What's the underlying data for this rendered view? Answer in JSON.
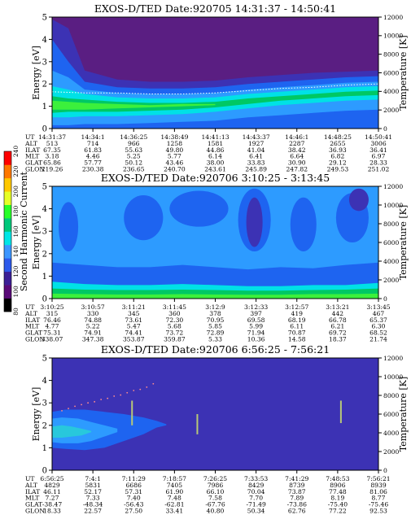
{
  "colorbar": {
    "label": "Second Harmonic Current",
    "ticks": [
      "80",
      "100",
      "120",
      "140",
      "160",
      "180",
      "200",
      "220",
      "240"
    ],
    "min": 80,
    "max": 240,
    "colors": [
      "#000000",
      "#5a0a78",
      "#3c1f96",
      "#2d5aeb",
      "#3c96ff",
      "#00e6e6",
      "#00c87a",
      "#28ff28",
      "#e6ff28",
      "#ffc800",
      "#ff7800",
      "#ff0000"
    ]
  },
  "chart_data": [
    {
      "type": "heatmap",
      "title": "EXOS-D/TED   Date:920705   14:31:37 - 14:50:41",
      "ylabel": "Energy [eV]",
      "y2label": "Temperature [K]",
      "ylim": [
        0,
        5
      ],
      "yticks": [
        "0",
        "1",
        "2",
        "3",
        "4",
        "5"
      ],
      "y2lim": [
        0,
        12000
      ],
      "y2ticks": [
        "0",
        "2000",
        "4000",
        "6000",
        "8000",
        "10000",
        "12000"
      ],
      "background": "#5a1e82",
      "bands": [
        {
          "name": "dark-blue",
          "color": "#3c32b4",
          "x": [
            0,
            0.05,
            0.1,
            0.2,
            0.3,
            0.4,
            0.5,
            0.6,
            0.7,
            0.8,
            0.9,
            1.0
          ],
          "lo": [
            0,
            0,
            0,
            0,
            0,
            0,
            0,
            0,
            0,
            0,
            0,
            0
          ],
          "hi": [
            4.9,
            4.5,
            2.6,
            2.2,
            2.1,
            2.1,
            2.15,
            2.3,
            2.4,
            2.5,
            2.55,
            2.6
          ]
        },
        {
          "name": "medium-blue",
          "color": "#1e64f0",
          "x": [
            0,
            0.05,
            0.1,
            0.2,
            0.3,
            0.4,
            0.5,
            0.6,
            0.7,
            0.8,
            0.9,
            1.0
          ],
          "lo": [
            0,
            0,
            0,
            0,
            0,
            0,
            0,
            0,
            0,
            0,
            0,
            0
          ],
          "hi": [
            4.0,
            3.0,
            2.1,
            1.85,
            1.8,
            1.8,
            1.85,
            2.0,
            2.1,
            2.2,
            2.3,
            2.35
          ]
        },
        {
          "name": "light-blue",
          "color": "#2d9bff",
          "x": [
            0,
            0.05,
            0.1,
            0.2,
            0.3,
            0.4,
            0.5,
            0.6,
            0.7,
            0.8,
            0.9,
            1.0
          ],
          "lo": [
            0.15,
            0.15,
            0.2,
            0.2,
            0.25,
            0.3,
            0.35,
            0.5,
            0.6,
            0.7,
            0.8,
            0.85
          ],
          "hi": [
            2.6,
            2.3,
            1.75,
            1.6,
            1.55,
            1.55,
            1.6,
            1.75,
            1.85,
            1.95,
            2.05,
            2.1
          ]
        },
        {
          "name": "cyan",
          "color": "#00e1e6",
          "x": [
            0,
            0.05,
            0.1,
            0.2,
            0.3,
            0.4,
            0.5,
            0.6,
            0.7,
            0.8,
            0.9,
            1.0
          ],
          "lo": [
            0.5,
            0.5,
            0.55,
            0.55,
            0.6,
            0.65,
            0.75,
            0.9,
            1.05,
            1.15,
            1.25,
            1.3
          ],
          "hi": [
            1.9,
            1.75,
            1.55,
            1.4,
            1.35,
            1.35,
            1.4,
            1.55,
            1.65,
            1.75,
            1.85,
            1.9
          ]
        },
        {
          "name": "green",
          "color": "#00c864",
          "x": [
            0,
            0.05,
            0.1,
            0.2,
            0.3,
            0.4,
            0.5,
            0.6,
            0.7,
            0.8,
            0.9,
            1.0
          ],
          "lo": [
            0.7,
            0.75,
            0.75,
            0.75,
            0.8,
            0.85,
            0.95,
            1.1,
            1.25,
            1.35,
            1.45,
            1.5
          ],
          "hi": [
            1.45,
            1.35,
            1.3,
            1.2,
            1.15,
            1.15,
            1.2,
            1.35,
            1.45,
            1.55,
            1.65,
            1.7
          ]
        },
        {
          "name": "bright-green",
          "color": "#3cf03c",
          "x": [
            0,
            0.05,
            0.1,
            0.2,
            0.3,
            0.4,
            0.5
          ],
          "lo": [
            0.85,
            0.85,
            0.85,
            0.9,
            0.95,
            1.0,
            1.05
          ],
          "hi": [
            1.25,
            1.2,
            1.15,
            1.1,
            1.05,
            1.1,
            1.1
          ]
        }
      ],
      "dashed_line": {
        "x": [
          0,
          0.1,
          0.2,
          0.3,
          0.4,
          0.5,
          0.6,
          0.7,
          0.8,
          0.9,
          1.0
        ],
        "y": [
          1.65,
          1.6,
          1.6,
          1.55,
          1.55,
          1.6,
          1.7,
          1.8,
          1.85,
          1.95,
          2.0
        ]
      },
      "table": {
        "labels": [
          "UT",
          "ALT",
          "ILAT",
          "MLT",
          "GLAT",
          "GLON"
        ],
        "columns": [
          [
            "14:31:37",
            "513",
            "67.35",
            "3.18",
            "65.86",
            "219.26"
          ],
          [
            "14:34:1",
            "714",
            "61.83",
            "4.46",
            "57.77",
            "230.38"
          ],
          [
            "14:36:25",
            "966",
            "55.63",
            "5.25",
            "50.12",
            "236.65"
          ],
          [
            "14:38:49",
            "1258",
            "49.80",
            "5.77",
            "43.46",
            "240.70"
          ],
          [
            "14:41:13",
            "1581",
            "44.86",
            "6.14",
            "38.00",
            "243.61"
          ],
          [
            "14:43:37",
            "1927",
            "41.04",
            "6.41",
            "33.83",
            "245.89"
          ],
          [
            "14:46:1",
            "2287",
            "38.42",
            "6.64",
            "30.90",
            "247.82"
          ],
          [
            "14:48:25",
            "2655",
            "36.93",
            "6.82",
            "29.12",
            "249.53"
          ],
          [
            "14:50:41",
            "3006",
            "36.41",
            "6.97",
            "28.33",
            "251.02"
          ]
        ]
      }
    },
    {
      "type": "heatmap",
      "title": "EXOS-D/TED   Date:920706   3:10:25 - 3:13:45",
      "ylabel": "Energy [eV]",
      "y2label": "Temperature [K]",
      "ylim": [
        0,
        5
      ],
      "yticks": [
        "0",
        "1",
        "2",
        "3",
        "4",
        "5"
      ],
      "y2lim": [
        0,
        12000
      ],
      "y2ticks": [
        "0",
        "2000",
        "4000",
        "6000",
        "8000",
        "10000",
        "12000"
      ],
      "background": "#2d9bff",
      "bands": [
        {
          "name": "medium-blue",
          "color": "#1e64f0",
          "x": [
            0,
            0.1,
            0.2,
            0.3,
            0.4,
            0.45,
            0.5,
            0.6,
            0.7,
            0.8,
            0.9,
            1.0
          ],
          "lo": [
            0,
            0,
            0,
            0,
            0,
            0,
            0,
            0,
            0,
            0,
            0,
            0
          ],
          "hi": [
            1.6,
            1.5,
            1.4,
            1.4,
            1.5,
            1.45,
            1.4,
            1.3,
            1.4,
            1.35,
            1.5,
            1.6
          ]
        },
        {
          "name": "cyan",
          "color": "#00e1e6",
          "x": [
            0,
            0.1,
            0.2,
            0.3,
            0.4,
            0.5,
            0.6,
            0.7,
            0.8,
            0.9,
            1.0
          ],
          "lo": [
            0,
            0,
            0,
            0,
            0,
            0,
            0,
            0,
            0,
            0,
            0
          ],
          "hi": [
            0.75,
            0.65,
            0.6,
            0.6,
            0.65,
            0.6,
            0.55,
            0.55,
            0.6,
            0.6,
            0.7
          ]
        },
        {
          "name": "green",
          "color": "#00c864",
          "x": [
            0,
            0.1,
            0.2,
            0.3,
            0.4,
            0.5,
            0.6,
            0.7,
            0.8,
            0.9,
            1.0
          ],
          "lo": [
            0,
            0,
            0,
            0,
            0,
            0,
            0,
            0,
            0,
            0,
            0
          ],
          "hi": [
            0.45,
            0.4,
            0.38,
            0.38,
            0.4,
            0.38,
            0.35,
            0.35,
            0.38,
            0.4,
            0.45
          ]
        },
        {
          "name": "bright-green",
          "color": "#3cf03c",
          "x": [
            0,
            0.1,
            0.2,
            0.3,
            0.4,
            0.5,
            0.6,
            0.7,
            0.8,
            0.9,
            1.0
          ],
          "lo": [
            0,
            0,
            0,
            0,
            0,
            0,
            0,
            0,
            0,
            0,
            0
          ],
          "hi": [
            0.22,
            0.2,
            0.18,
            0.18,
            0.2,
            0.18,
            0.17,
            0.17,
            0.2,
            0.2,
            0.22
          ]
        }
      ],
      "blobs": [
        {
          "color": "#1e64f0",
          "cx": 0.05,
          "cy": 3.2,
          "rx": 0.03,
          "ry": 1.1
        },
        {
          "color": "#1e64f0",
          "cx": 0.28,
          "cy": 3.6,
          "rx": 0.06,
          "ry": 1.0
        },
        {
          "color": "#1e64f0",
          "cx": 0.45,
          "cy": 4.0,
          "rx": 0.09,
          "ry": 0.8
        },
        {
          "color": "#1e64f0",
          "cx": 0.62,
          "cy": 3.5,
          "rx": 0.05,
          "ry": 1.4
        },
        {
          "color": "#1e64f0",
          "cx": 0.77,
          "cy": 3.3,
          "rx": 0.04,
          "ry": 1.2
        },
        {
          "color": "#1e64f0",
          "cx": 0.92,
          "cy": 3.6,
          "rx": 0.05,
          "ry": 1.1
        },
        {
          "color": "#3c32b4",
          "cx": 0.62,
          "cy": 3.4,
          "rx": 0.025,
          "ry": 1.1
        },
        {
          "color": "#3c32b4",
          "cx": 0.94,
          "cy": 4.4,
          "rx": 0.03,
          "ry": 0.5
        }
      ],
      "table": {
        "labels": [
          "UT",
          "ALT",
          "ILAT",
          "MLT",
          "GLAT",
          "GLON"
        ],
        "columns": [
          [
            "3:10:25",
            "315",
            "76.46",
            "4.77",
            "75.31",
            "338.07"
          ],
          [
            "3:10:57",
            "330",
            "74.88",
            "5.22",
            "74.91",
            "347.38"
          ],
          [
            "3:11:21",
            "345",
            "73.61",
            "5.47",
            "74.41",
            "353.87"
          ],
          [
            "3:11:45",
            "360",
            "72.30",
            "5.68",
            "73.72",
            "359.87"
          ],
          [
            "3:12:9",
            "378",
            "70.95",
            "5.85",
            "72.89",
            "5.33"
          ],
          [
            "3:12:33",
            "397",
            "69.58",
            "5.99",
            "71.94",
            "10.36"
          ],
          [
            "3:12:57",
            "419",
            "68.19",
            "6.11",
            "70.87",
            "14.58"
          ],
          [
            "3:13:21",
            "442",
            "66.78",
            "6.21",
            "69.72",
            "18.37"
          ],
          [
            "3:13:45",
            "467",
            "65.37",
            "6.30",
            "68.52",
            "21.74"
          ]
        ]
      }
    },
    {
      "type": "heatmap",
      "title": "EXOS-D/TED   Date:920706   6:56:25 - 7:56:21",
      "ylabel": "Energy [eV]",
      "y2label": "Temperature [K]",
      "ylim": [
        0,
        5
      ],
      "yticks": [
        "0",
        "1",
        "2",
        "3",
        "4",
        "5"
      ],
      "y2lim": [
        0,
        12000
      ],
      "y2ticks": [
        "0",
        "2000",
        "4000",
        "6000",
        "8000",
        "10000",
        "12000"
      ],
      "background": "#3c32b4",
      "bands": [
        {
          "name": "medium-blue",
          "color": "#1e64f0",
          "x": [
            0,
            0.04,
            0.1,
            0.16,
            0.22,
            0.28,
            0.32,
            0.35
          ],
          "lo": [
            1.0,
            0.95,
            0.9,
            1.0,
            1.3,
            1.6,
            1.9,
            2.0
          ],
          "hi": [
            2.6,
            2.7,
            2.7,
            2.6,
            2.5,
            2.35,
            2.2,
            2.05
          ]
        },
        {
          "name": "light-blue",
          "color": "#2d9bff",
          "x": [
            0,
            0.03,
            0.08,
            0.12,
            0.16,
            0.2
          ],
          "lo": [
            1.25,
            1.2,
            1.2,
            1.3,
            1.5,
            1.7
          ],
          "hi": [
            2.3,
            2.35,
            2.3,
            2.15,
            2.0,
            1.85
          ]
        },
        {
          "name": "cyan",
          "color": "#28c8dc",
          "x": [
            0,
            0.03,
            0.06,
            0.09,
            0.12
          ],
          "lo": [
            1.45,
            1.45,
            1.5,
            1.55,
            1.7
          ],
          "hi": [
            1.95,
            2.0,
            1.95,
            1.85,
            1.75
          ]
        }
      ],
      "dots": {
        "color": "#ff8c8c",
        "x": [
          0.03,
          0.05,
          0.07,
          0.09,
          0.11,
          0.13,
          0.15,
          0.17,
          0.19,
          0.21,
          0.23,
          0.25,
          0.27,
          0.29,
          0.31
        ],
        "y": [
          2.65,
          2.75,
          2.85,
          2.92,
          3.0,
          3.05,
          3.15,
          3.2,
          3.3,
          3.35,
          3.45,
          3.55,
          3.6,
          3.7,
          3.85
        ]
      },
      "streaks": [
        {
          "color": "#b8c878",
          "x": 0.245,
          "y0": 2.0,
          "y1": 3.1
        },
        {
          "color": "#b8c878",
          "x": 0.445,
          "y0": 1.6,
          "y1": 2.5
        },
        {
          "color": "#b8c878",
          "x": 0.885,
          "y0": 2.1,
          "y1": 3.1
        }
      ],
      "table": {
        "labels": [
          "UT",
          "ALT",
          "ILAT",
          "MLT",
          "GLAT",
          "GLON"
        ],
        "columns": [
          [
            "6:56:25",
            "4829",
            "46.11",
            "7.27",
            "-38.47",
            "18.33"
          ],
          [
            "7:4:1",
            "5831",
            "52.17",
            "7.33",
            "-48.34",
            "22.57"
          ],
          [
            "7:11:29",
            "6686",
            "57.31",
            "7.40",
            "-56.43",
            "27.50"
          ],
          [
            "7:18:57",
            "7405",
            "61.90",
            "7.48",
            "-62.81",
            "33.41"
          ],
          [
            "7:26:25",
            "7986",
            "66.10",
            "7.58",
            "-67.76",
            "40.80"
          ],
          [
            "7:33:53",
            "8429",
            "70.04",
            "7.70",
            "-71.49",
            "50.34"
          ],
          [
            "7:41:29",
            "8739",
            "73.87",
            "7.89",
            "-73.86",
            "62.76"
          ],
          [
            "7:48:53",
            "8906",
            "77.48",
            "8.19",
            "-75.40",
            "77.22"
          ],
          [
            "7:56:21",
            "8939",
            "81.06",
            "8.77",
            "-75.46",
            "92.53"
          ]
        ]
      }
    }
  ]
}
